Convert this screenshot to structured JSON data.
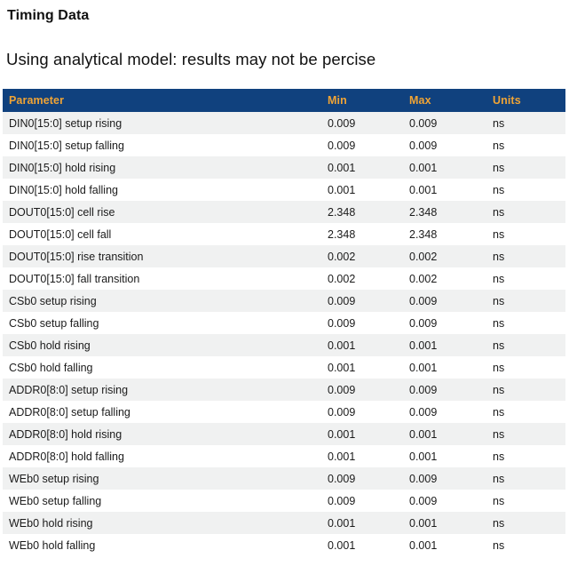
{
  "page": {
    "title": "Timing Data",
    "subtitle": "Using analytical model: results may not be percise"
  },
  "colors": {
    "header_bg": "#10417e",
    "header_text": "#f0a435",
    "row_alt_bg": "#f0f1f1",
    "body_text": "#1b1b1b"
  },
  "table": {
    "columns": [
      "Parameter",
      "Min",
      "Max",
      "Units"
    ],
    "rows": [
      {
        "parameter": "DIN0[15:0] setup rising",
        "min": "0.009",
        "max": "0.009",
        "units": "ns"
      },
      {
        "parameter": "DIN0[15:0] setup falling",
        "min": "0.009",
        "max": "0.009",
        "units": "ns"
      },
      {
        "parameter": "DIN0[15:0] hold rising",
        "min": "0.001",
        "max": "0.001",
        "units": "ns"
      },
      {
        "parameter": "DIN0[15:0] hold falling",
        "min": "0.001",
        "max": "0.001",
        "units": "ns"
      },
      {
        "parameter": "DOUT0[15:0] cell rise",
        "min": "2.348",
        "max": "2.348",
        "units": "ns"
      },
      {
        "parameter": "DOUT0[15:0] cell fall",
        "min": "2.348",
        "max": "2.348",
        "units": "ns"
      },
      {
        "parameter": "DOUT0[15:0] rise transition",
        "min": "0.002",
        "max": "0.002",
        "units": "ns"
      },
      {
        "parameter": "DOUT0[15:0] fall transition",
        "min": "0.002",
        "max": "0.002",
        "units": "ns"
      },
      {
        "parameter": "CSb0 setup rising",
        "min": "0.009",
        "max": "0.009",
        "units": "ns"
      },
      {
        "parameter": "CSb0 setup falling",
        "min": "0.009",
        "max": "0.009",
        "units": "ns"
      },
      {
        "parameter": "CSb0 hold rising",
        "min": "0.001",
        "max": "0.001",
        "units": "ns"
      },
      {
        "parameter": "CSb0 hold falling",
        "min": "0.001",
        "max": "0.001",
        "units": "ns"
      },
      {
        "parameter": "ADDR0[8:0] setup rising",
        "min": "0.009",
        "max": "0.009",
        "units": "ns"
      },
      {
        "parameter": "ADDR0[8:0] setup falling",
        "min": "0.009",
        "max": "0.009",
        "units": "ns"
      },
      {
        "parameter": "ADDR0[8:0] hold rising",
        "min": "0.001",
        "max": "0.001",
        "units": "ns"
      },
      {
        "parameter": "ADDR0[8:0] hold falling",
        "min": "0.001",
        "max": "0.001",
        "units": "ns"
      },
      {
        "parameter": "WEb0 setup rising",
        "min": "0.009",
        "max": "0.009",
        "units": "ns"
      },
      {
        "parameter": "WEb0 setup falling",
        "min": "0.009",
        "max": "0.009",
        "units": "ns"
      },
      {
        "parameter": "WEb0 hold rising",
        "min": "0.001",
        "max": "0.001",
        "units": "ns"
      },
      {
        "parameter": "WEb0 hold falling",
        "min": "0.001",
        "max": "0.001",
        "units": "ns"
      }
    ]
  }
}
